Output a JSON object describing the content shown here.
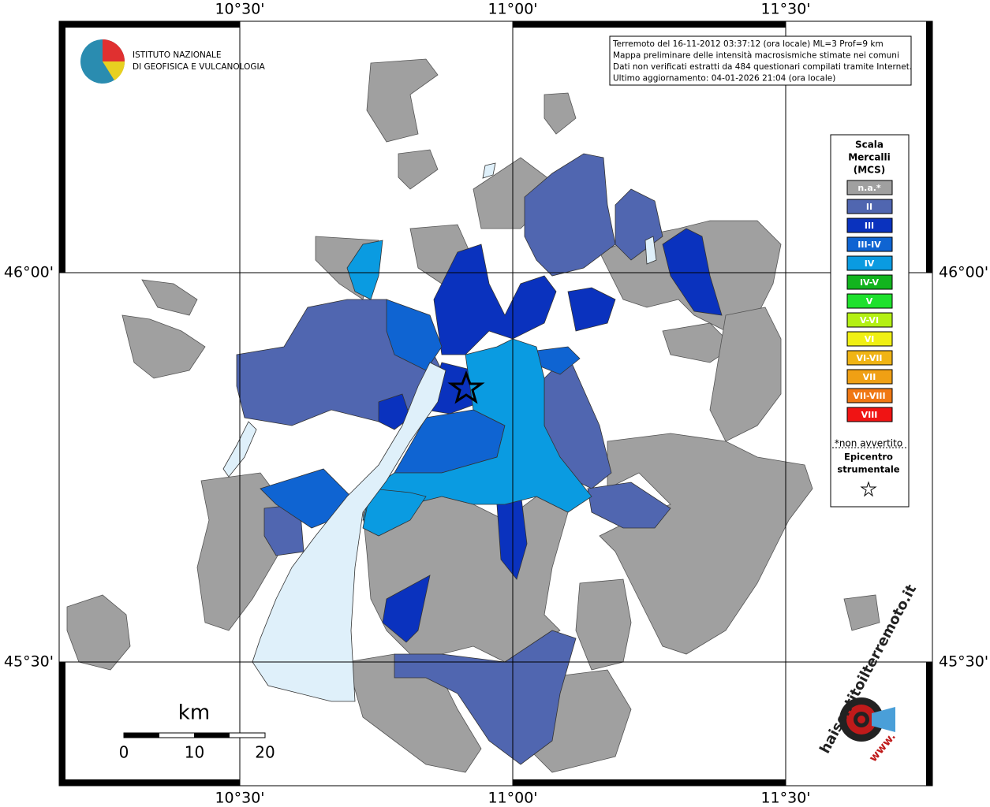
{
  "logo": {
    "line1": "ISTITUTO NAZIONALE",
    "line2": "DI GEOFISICA E VULCANOLOGIA"
  },
  "info": [
    "Terremoto del 16-11-2012 03:37:12 (ora locale) ML=3 Prof=9 km",
    "Mappa preliminare delle intensità macrosismiche stimate nei comuni",
    "Dati non verificati estratti da 484 questionari compilati tramite Internet.",
    "Ultimo aggiornamento: 04-01-2026 21:04 (ora locale)"
  ],
  "lon_labels": [
    "10°30'",
    "11°00'",
    "11°30'"
  ],
  "lat_labels": [
    "46°00'",
    "45°30'"
  ],
  "legend": {
    "title": [
      "Scala",
      "Mercalli",
      "(MCS)"
    ],
    "items": [
      {
        "label": "n.a.*",
        "color": "#a0a0a0"
      },
      {
        "label": "II",
        "color": "#5066b0"
      },
      {
        "label": "III",
        "color": "#0a32be"
      },
      {
        "label": "III-IV",
        "color": "#0f64d2"
      },
      {
        "label": "IV",
        "color": "#0a9be1"
      },
      {
        "label": "IV-V",
        "color": "#12b41e"
      },
      {
        "label": "V",
        "color": "#1ee12d"
      },
      {
        "label": "V-VI",
        "color": "#b4f014"
      },
      {
        "label": "VI",
        "color": "#f0f014"
      },
      {
        "label": "VI-VII",
        "color": "#f0b414"
      },
      {
        "label": "VII",
        "color": "#f0a014"
      },
      {
        "label": "VII-VIII",
        "color": "#f07814"
      },
      {
        "label": "VIII",
        "color": "#f01414"
      }
    ],
    "note": "*non avvertito",
    "epicenter": [
      "Epicentro",
      "strumentale"
    ]
  },
  "scale": {
    "unit": "km",
    "ticks": [
      "0",
      "10",
      "20"
    ]
  },
  "watermark": {
    "site": "haisentitoilterremoto.it",
    "www": "www."
  }
}
